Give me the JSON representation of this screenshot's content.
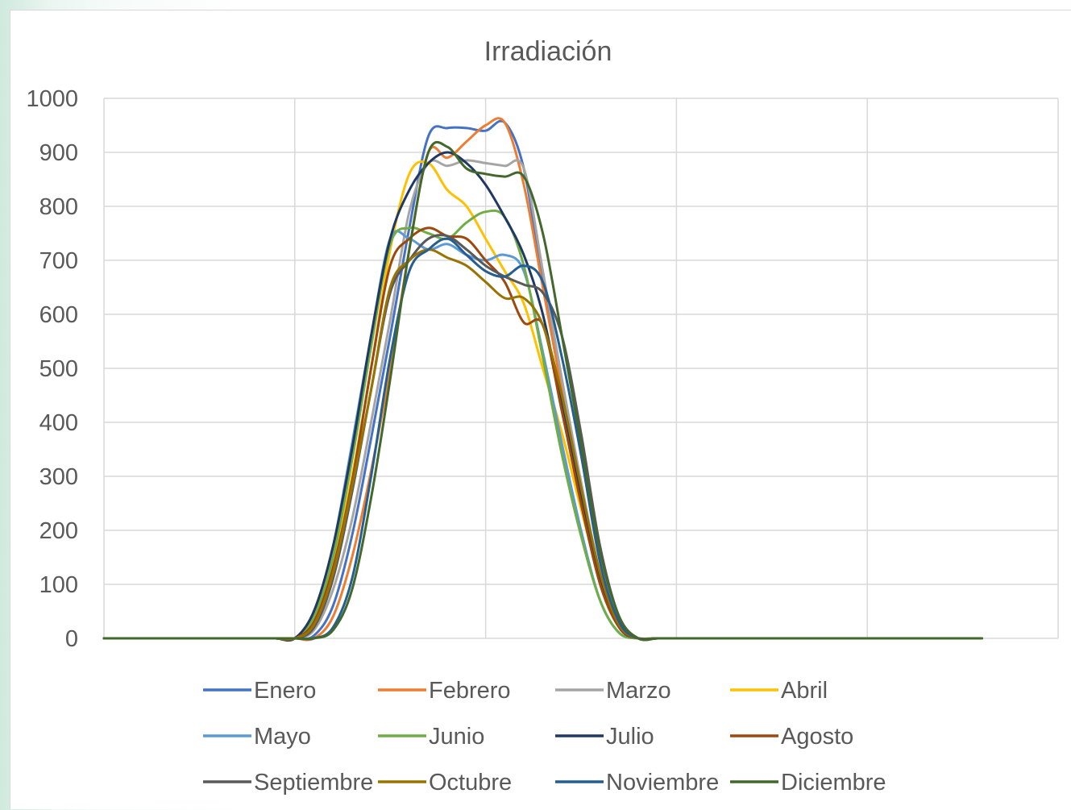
{
  "chart_data": {
    "type": "line",
    "title": "Irradiación",
    "xlabel": "",
    "ylabel": "",
    "x": [
      0,
      1,
      2,
      3,
      4,
      5,
      6,
      7,
      8,
      9,
      10,
      11,
      12,
      13,
      14,
      15,
      16,
      17,
      18,
      19,
      20,
      21,
      22,
      23,
      24,
      25,
      26,
      27,
      28,
      29,
      30,
      31,
      32,
      33,
      34,
      35,
      36,
      37,
      38,
      39,
      40,
      41,
      42,
      43,
      44,
      45,
      46
    ],
    "xlim": [
      0,
      50
    ],
    "ylim": [
      0,
      1000
    ],
    "yticks": [
      0,
      100,
      200,
      300,
      400,
      500,
      600,
      700,
      800,
      900,
      1000
    ],
    "ytick_labels": [
      "0",
      "100",
      "200",
      "300",
      "400",
      "500",
      "600",
      "700",
      "800",
      "900",
      "1000"
    ],
    "grid": true,
    "legend_position": "bottom",
    "series": [
      {
        "name": "Enero",
        "color": "#4472C4",
        "values": [
          0,
          0,
          0,
          0,
          0,
          0,
          0,
          0,
          0,
          0,
          0,
          5,
          60,
          190,
          370,
          560,
          760,
          930,
          945,
          945,
          940,
          955,
          870,
          660,
          460,
          270,
          110,
          20,
          0,
          0,
          0,
          0,
          0,
          0,
          0,
          0,
          0,
          0,
          0,
          0,
          0,
          0,
          0,
          0,
          0,
          0,
          0
        ]
      },
      {
        "name": "Febrero",
        "color": "#ED7D31",
        "values": [
          0,
          0,
          0,
          0,
          0,
          0,
          0,
          0,
          0,
          0,
          0,
          0,
          40,
          150,
          310,
          500,
          720,
          900,
          890,
          920,
          950,
          955,
          840,
          650,
          460,
          280,
          120,
          30,
          0,
          0,
          0,
          0,
          0,
          0,
          0,
          0,
          0,
          0,
          0,
          0,
          0,
          0,
          0,
          0,
          0,
          0,
          0
        ]
      },
      {
        "name": "Marzo",
        "color": "#A5A5A5",
        "values": [
          0,
          0,
          0,
          0,
          0,
          0,
          0,
          0,
          0,
          0,
          0,
          15,
          90,
          220,
          400,
          590,
          790,
          880,
          875,
          885,
          880,
          875,
          870,
          680,
          480,
          290,
          120,
          30,
          0,
          0,
          0,
          0,
          0,
          0,
          0,
          0,
          0,
          0,
          0,
          0,
          0,
          0,
          0,
          0,
          0,
          0,
          0
        ]
      },
      {
        "name": "Abril",
        "color": "#FFC000",
        "values": [
          0,
          0,
          0,
          0,
          0,
          0,
          0,
          0,
          0,
          0,
          0,
          30,
          140,
          300,
          500,
          720,
          860,
          880,
          830,
          800,
          740,
          680,
          620,
          500,
          380,
          240,
          110,
          30,
          0,
          0,
          0,
          0,
          0,
          0,
          0,
          0,
          0,
          0,
          0,
          0,
          0,
          0,
          0,
          0,
          0,
          0,
          0
        ]
      },
      {
        "name": "Mayo",
        "color": "#5B9BD5",
        "values": [
          0,
          0,
          0,
          0,
          0,
          0,
          0,
          0,
          0,
          0,
          0,
          50,
          170,
          360,
          560,
          740,
          740,
          720,
          730,
          710,
          700,
          710,
          680,
          530,
          360,
          200,
          70,
          10,
          0,
          0,
          0,
          0,
          0,
          0,
          0,
          0,
          0,
          0,
          0,
          0,
          0,
          0,
          0,
          0,
          0,
          0,
          0
        ]
      },
      {
        "name": "Junio",
        "color": "#70AD47",
        "values": [
          0,
          0,
          0,
          0,
          0,
          0,
          0,
          0,
          0,
          0,
          0,
          40,
          150,
          330,
          540,
          730,
          760,
          750,
          740,
          770,
          790,
          780,
          690,
          520,
          340,
          190,
          70,
          10,
          0,
          0,
          0,
          0,
          0,
          0,
          0,
          0,
          0,
          0,
          0,
          0,
          0,
          0,
          0,
          0,
          0,
          0,
          0
        ]
      },
      {
        "name": "Julio",
        "color": "#203864",
        "values": [
          0,
          0,
          0,
          0,
          0,
          0,
          0,
          0,
          0,
          0,
          0,
          50,
          170,
          350,
          560,
          740,
          830,
          880,
          900,
          880,
          840,
          780,
          710,
          600,
          430,
          260,
          110,
          20,
          0,
          0,
          0,
          0,
          0,
          0,
          0,
          0,
          0,
          0,
          0,
          0,
          0,
          0,
          0,
          0,
          0,
          0,
          0
        ]
      },
      {
        "name": "Agosto",
        "color": "#9E480E",
        "values": [
          0,
          0,
          0,
          0,
          0,
          0,
          0,
          0,
          0,
          0,
          0,
          30,
          130,
          290,
          500,
          690,
          740,
          760,
          745,
          740,
          700,
          660,
          585,
          580,
          420,
          250,
          100,
          20,
          0,
          0,
          0,
          0,
          0,
          0,
          0,
          0,
          0,
          0,
          0,
          0,
          0,
          0,
          0,
          0,
          0,
          0,
          0
        ]
      },
      {
        "name": "Septiembre",
        "color": "#595959",
        "values": [
          0,
          0,
          0,
          0,
          0,
          0,
          0,
          0,
          0,
          0,
          0,
          20,
          110,
          270,
          460,
          640,
          700,
          740,
          745,
          720,
          690,
          670,
          655,
          640,
          560,
          380,
          170,
          40,
          0,
          0,
          0,
          0,
          0,
          0,
          0,
          0,
          0,
          0,
          0,
          0,
          0,
          0,
          0,
          0,
          0,
          0,
          0
        ]
      },
      {
        "name": "Octubre",
        "color": "#997300",
        "values": [
          0,
          0,
          0,
          0,
          0,
          0,
          0,
          0,
          0,
          0,
          0,
          25,
          120,
          280,
          460,
          650,
          700,
          720,
          705,
          690,
          660,
          630,
          630,
          580,
          450,
          280,
          120,
          25,
          0,
          0,
          0,
          0,
          0,
          0,
          0,
          0,
          0,
          0,
          0,
          0,
          0,
          0,
          0,
          0,
          0,
          0,
          0
        ]
      },
      {
        "name": "Noviembre",
        "color": "#255E91",
        "values": [
          0,
          0,
          0,
          0,
          0,
          0,
          0,
          0,
          0,
          0,
          0,
          0,
          20,
          110,
          300,
          520,
          680,
          720,
          740,
          710,
          680,
          670,
          690,
          660,
          520,
          340,
          140,
          30,
          0,
          0,
          0,
          0,
          0,
          0,
          0,
          0,
          0,
          0,
          0,
          0,
          0,
          0,
          0,
          0,
          0,
          0,
          0
        ]
      },
      {
        "name": "Diciembre",
        "color": "#43682B",
        "values": [
          0,
          0,
          0,
          0,
          0,
          0,
          0,
          0,
          0,
          0,
          0,
          0,
          15,
          90,
          260,
          480,
          720,
          900,
          910,
          870,
          860,
          855,
          855,
          750,
          560,
          360,
          160,
          40,
          0,
          0,
          0,
          0,
          0,
          0,
          0,
          0,
          0,
          0,
          0,
          0,
          0,
          0,
          0,
          0,
          0,
          0,
          0
        ]
      }
    ]
  }
}
